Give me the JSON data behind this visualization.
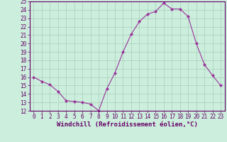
{
  "x": [
    0,
    1,
    2,
    3,
    4,
    5,
    6,
    7,
    8,
    9,
    10,
    11,
    12,
    13,
    14,
    15,
    16,
    17,
    18,
    19,
    20,
    21,
    22,
    23
  ],
  "y": [
    16,
    15.5,
    15.1,
    14.3,
    13.2,
    13.1,
    13.0,
    12.8,
    12.0,
    14.6,
    16.5,
    19.0,
    21.1,
    22.6,
    23.5,
    23.8,
    24.8,
    24.1,
    24.1,
    23.2,
    20.0,
    17.5,
    16.2,
    15.0
  ],
  "line_color": "#993399",
  "marker": "D",
  "marker_size": 2.5,
  "bg_color": "#cceedd",
  "grid_color": "#aaccbb",
  "xlabel": "Windchill (Refroidissement éolien,°C)",
  "ylim": [
    12,
    25
  ],
  "xlim": [
    -0.5,
    23.5
  ],
  "yticks": [
    12,
    13,
    14,
    15,
    16,
    17,
    18,
    19,
    20,
    21,
    22,
    23,
    24,
    25
  ],
  "xticks": [
    0,
    1,
    2,
    3,
    4,
    5,
    6,
    7,
    8,
    9,
    10,
    11,
    12,
    13,
    14,
    15,
    16,
    17,
    18,
    19,
    20,
    21,
    22,
    23
  ],
  "tick_fontsize": 5.5,
  "xlabel_fontsize": 6.5,
  "axis_color": "#660066",
  "spine_color": "#660066"
}
